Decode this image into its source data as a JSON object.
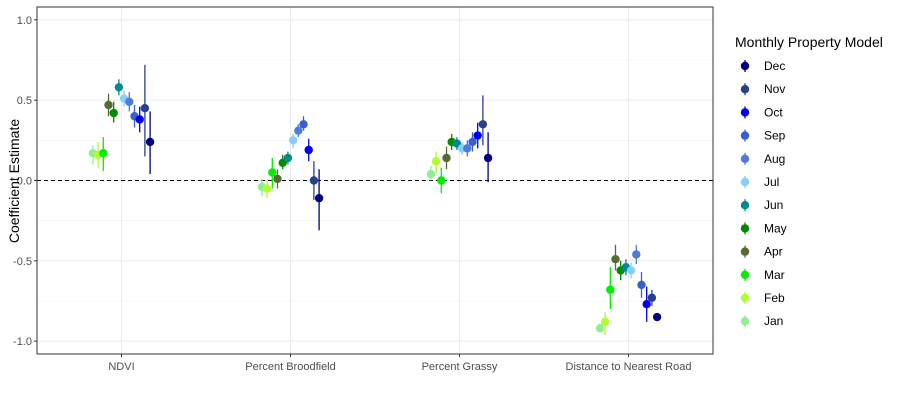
{
  "chart_data": {
    "type": "scatter",
    "subtype": "point-range",
    "title": "",
    "xlabel": "",
    "ylabel": "Coefficient Estimate",
    "ylim": [
      -1.08,
      1.08
    ],
    "yticks": [
      "1.0",
      "0.5",
      "0.0",
      "-0.5",
      "-1.0"
    ],
    "ytick_values": [
      1.0,
      0.5,
      0.0,
      -0.5,
      -1.0
    ],
    "reference_line": {
      "y": 0,
      "style": "dashed"
    },
    "grid": true,
    "categories": [
      "NDVI",
      "Percent Broodfield",
      "Percent Grassy",
      "Distance to Nearest Road"
    ],
    "legend": {
      "title": "Monthly Property Model",
      "position": "right",
      "entries": [
        "Dec",
        "Nov",
        "Oct",
        "Sep",
        "Aug",
        "Jul",
        "Jun",
        "May",
        "Apr",
        "Mar",
        "Feb",
        "Jan"
      ]
    },
    "series": [
      {
        "name": "Jan",
        "color": "#90EE90",
        "values": [
          0.17,
          -0.04,
          0.04,
          -0.92
        ],
        "lower": [
          0.1,
          -0.1,
          0.0,
          -0.94
        ],
        "upper": [
          0.22,
          0.01,
          0.09,
          -0.89
        ]
      },
      {
        "name": "Feb",
        "color": "#ADFF2F",
        "values": [
          0.16,
          -0.05,
          0.12,
          -0.88
        ],
        "lower": [
          0.08,
          -0.11,
          0.04,
          -0.96
        ],
        "upper": [
          0.24,
          0.01,
          0.18,
          -0.82
        ]
      },
      {
        "name": "Mar",
        "color": "#00EE00",
        "values": [
          0.17,
          0.05,
          0.0,
          -0.68
        ],
        "lower": [
          0.06,
          -0.05,
          -0.08,
          -0.8
        ],
        "upper": [
          0.27,
          0.14,
          0.08,
          -0.54
        ]
      },
      {
        "name": "Apr",
        "color": "#556B2F",
        "values": [
          0.47,
          0.01,
          0.14,
          -0.49
        ],
        "lower": [
          0.4,
          -0.05,
          0.07,
          -0.56
        ],
        "upper": [
          0.54,
          0.07,
          0.21,
          -0.4
        ]
      },
      {
        "name": "May",
        "color": "#008B00",
        "values": [
          0.42,
          0.11,
          0.24,
          -0.56
        ],
        "lower": [
          0.36,
          0.07,
          0.19,
          -0.62
        ],
        "upper": [
          0.49,
          0.16,
          0.29,
          -0.5
        ]
      },
      {
        "name": "Jun",
        "color": "#008B8B",
        "values": [
          0.58,
          0.14,
          0.23,
          -0.54
        ],
        "lower": [
          0.53,
          0.1,
          0.19,
          -0.59
        ],
        "upper": [
          0.63,
          0.18,
          0.27,
          -0.49
        ]
      },
      {
        "name": "Jul",
        "color": "#87CEFA",
        "values": [
          0.51,
          0.25,
          0.2,
          -0.56
        ],
        "lower": [
          0.46,
          0.2,
          0.16,
          -0.61
        ],
        "upper": [
          0.56,
          0.29,
          0.24,
          -0.51
        ]
      },
      {
        "name": "Aug",
        "color": "#4C7BD9",
        "values": [
          0.49,
          0.31,
          0.2,
          -0.46
        ],
        "lower": [
          0.43,
          0.27,
          0.15,
          -0.52
        ],
        "upper": [
          0.55,
          0.35,
          0.25,
          -0.4
        ]
      },
      {
        "name": "Sep",
        "color": "#3A5FCD",
        "values": [
          0.4,
          0.35,
          0.24,
          -0.65
        ],
        "lower": [
          0.33,
          0.31,
          0.18,
          -0.73
        ],
        "upper": [
          0.47,
          0.4,
          0.3,
          -0.57
        ]
      },
      {
        "name": "Oct",
        "color": "#0000EE",
        "values": [
          0.38,
          0.19,
          0.28,
          -0.77
        ],
        "lower": [
          0.3,
          0.12,
          0.2,
          -0.88
        ],
        "upper": [
          0.46,
          0.26,
          0.36,
          -0.66
        ]
      },
      {
        "name": "Nov",
        "color": "#27408B",
        "values": [
          0.45,
          0.0,
          0.35,
          -0.73
        ],
        "lower": [
          0.15,
          -0.12,
          0.22,
          -0.78
        ],
        "upper": [
          0.72,
          0.12,
          0.53,
          -0.68
        ]
      },
      {
        "name": "Dec",
        "color": "#000080",
        "values": [
          0.24,
          -0.11,
          0.14,
          -0.85
        ],
        "lower": [
          0.04,
          -0.31,
          -0.01,
          -0.87
        ],
        "upper": [
          0.43,
          0.07,
          0.3,
          -0.83
        ]
      }
    ]
  }
}
